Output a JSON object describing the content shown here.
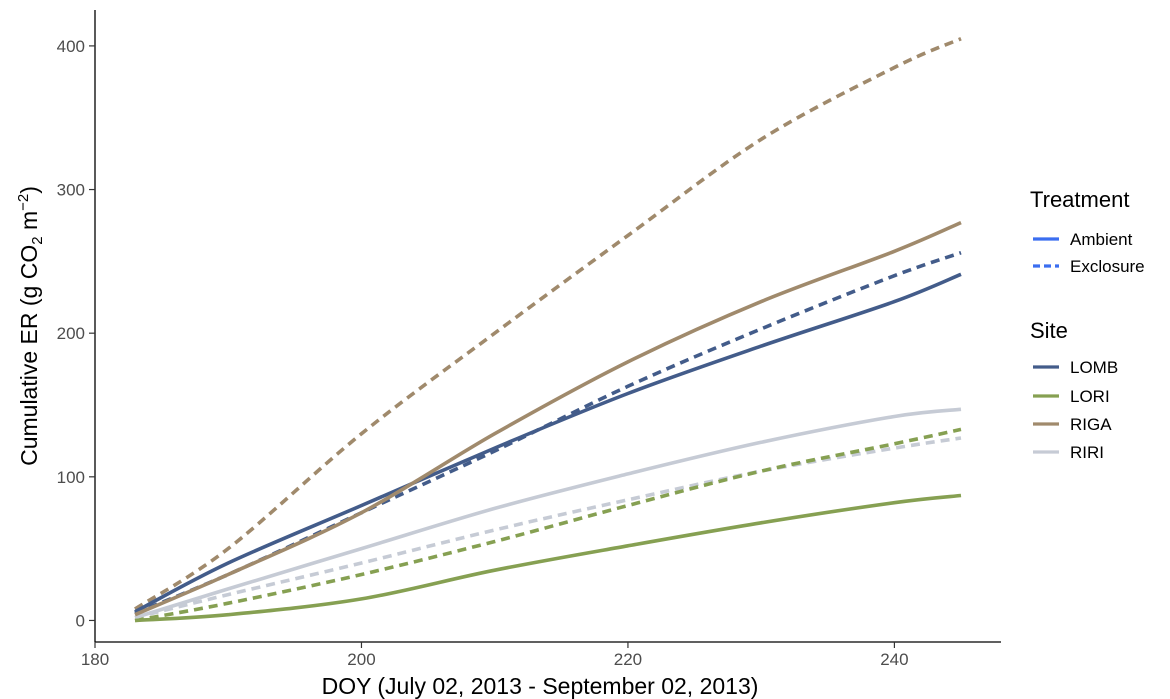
{
  "colors": {
    "LOMB": "#435c8a",
    "LORI": "#86a052",
    "RIGA": "#a08a6c",
    "RIRI": "#c6cbd5",
    "treatment_key": "#3b6ef0",
    "axis": "#000000"
  },
  "chart_data": {
    "type": "line",
    "title": "",
    "xlabel": "DOY (July 02, 2013 - September 02, 2013)",
    "ylabel": {
      "prefix": "Cumulative ER (g  CO",
      "sub": "2",
      "mid": "  m",
      "sup": "−2",
      "suffix": ")"
    },
    "xlim": [
      180,
      248
    ],
    "ylim": [
      -15,
      425
    ],
    "xticks": [
      180,
      200,
      220,
      240
    ],
    "yticks": [
      0,
      100,
      200,
      300,
      400
    ],
    "grid": false,
    "legend_position": "right",
    "legend": {
      "treatment": {
        "title": "Treatment",
        "items": [
          {
            "label": "Ambient",
            "linetype": "solid"
          },
          {
            "label": "Exclosure",
            "linetype": "dashed"
          }
        ]
      },
      "site": {
        "title": "Site",
        "items": [
          {
            "label": "LOMB",
            "color_key": "LOMB"
          },
          {
            "label": "LORI",
            "color_key": "LORI"
          },
          {
            "label": "RIGA",
            "color_key": "RIGA"
          },
          {
            "label": "RIRI",
            "color_key": "RIRI"
          }
        ]
      }
    },
    "series": [
      {
        "site": "RIRI",
        "treatment": "Exclosure",
        "x": [
          183,
          190,
          200,
          210,
          220,
          230,
          240,
          245
        ],
        "y": [
          2,
          18,
          40,
          63,
          84,
          104,
          120,
          127
        ]
      },
      {
        "site": "LORI",
        "treatment": "Exclosure",
        "x": [
          183,
          190,
          200,
          210,
          220,
          230,
          240,
          245
        ],
        "y": [
          0,
          12,
          32,
          55,
          80,
          104,
          123,
          133
        ]
      },
      {
        "site": "RIGA",
        "treatment": "Exclosure",
        "x": [
          183,
          190,
          200,
          210,
          220,
          230,
          240,
          245
        ],
        "y": [
          8,
          50,
          130,
          200,
          268,
          335,
          385,
          405
        ]
      },
      {
        "site": "LOMB",
        "treatment": "Exclosure",
        "x": [
          183,
          190,
          200,
          210,
          220,
          230,
          240,
          245
        ],
        "y": [
          5,
          32,
          75,
          118,
          163,
          203,
          240,
          256
        ]
      },
      {
        "site": "RIRI",
        "treatment": "Ambient",
        "x": [
          183,
          190,
          200,
          210,
          220,
          230,
          240,
          245
        ],
        "y": [
          2,
          22,
          50,
          78,
          102,
          124,
          142,
          147
        ]
      },
      {
        "site": "LORI",
        "treatment": "Ambient",
        "x": [
          183,
          190,
          200,
          210,
          220,
          230,
          240,
          245
        ],
        "y": [
          0,
          4,
          15,
          35,
          52,
          68,
          82,
          87
        ]
      },
      {
        "site": "LOMB",
        "treatment": "Ambient",
        "x": [
          183,
          190,
          200,
          210,
          220,
          230,
          240,
          245
        ],
        "y": [
          6,
          40,
          80,
          120,
          158,
          191,
          222,
          241
        ]
      },
      {
        "site": "RIGA",
        "treatment": "Ambient",
        "x": [
          183,
          190,
          200,
          210,
          220,
          230,
          240,
          245
        ],
        "y": [
          4,
          32,
          75,
          130,
          180,
          222,
          257,
          277
        ]
      }
    ]
  }
}
